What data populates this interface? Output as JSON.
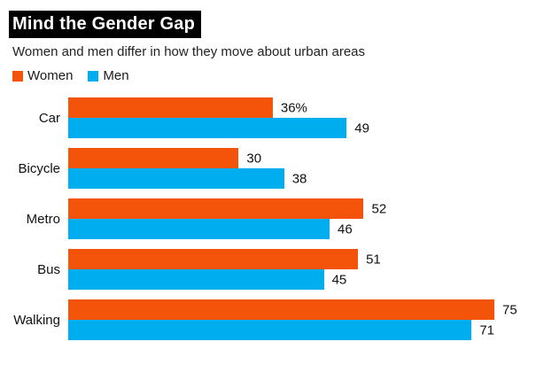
{
  "chart_data": {
    "type": "bar",
    "orientation": "horizontal",
    "title": "Mind the Gender Gap",
    "subtitle": "Women and men differ in how they move about urban areas",
    "categories": [
      "Car",
      "Bicycle",
      "Metro",
      "Bus",
      "Walking"
    ],
    "series": [
      {
        "name": "Women",
        "color": "#f4530a",
        "values": [
          36,
          30,
          52,
          51,
          75
        ],
        "value_labels": [
          "36%",
          "30",
          "52",
          "51",
          "75"
        ]
      },
      {
        "name": "Men",
        "color": "#00aef0",
        "values": [
          49,
          38,
          46,
          45,
          71
        ],
        "value_labels": [
          "49",
          "38",
          "46",
          "45",
          "71"
        ]
      }
    ],
    "xlim": [
      0,
      75
    ],
    "grid": false,
    "legend_position": "top-left",
    "value_unit": "%"
  },
  "styles": {
    "title_bg": "#000000",
    "title_fg": "#ffffff",
    "women_color": "#f4530a",
    "men_color": "#00aef0"
  }
}
